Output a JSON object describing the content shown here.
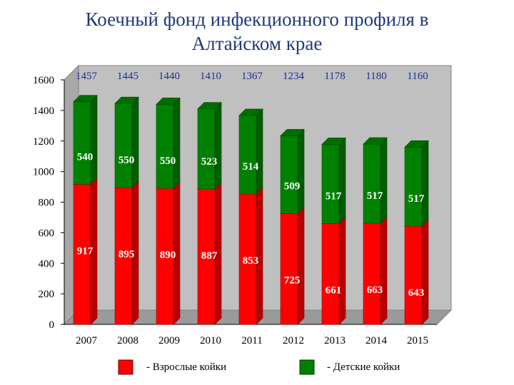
{
  "title_line1": "Коечный фонд инфекционного профиля в",
  "title_line2": "Алтайском крае",
  "legend": {
    "adult_label": "- Взрослые койки",
    "child_label": "- Детские койки"
  },
  "colors": {
    "adult": "#ff0000",
    "child": "#008000",
    "total_label": "#1f2f8f",
    "segment_label": "#ffffff",
    "plot_bg": "#c0c0c0"
  },
  "chart_data": {
    "type": "bar",
    "stacked": true,
    "categories": [
      "2007",
      "2008",
      "2009",
      "2010",
      "2011",
      "2012",
      "2013",
      "2014",
      "2015"
    ],
    "series": [
      {
        "name": "Взрослые койки",
        "values": [
          917,
          895,
          890,
          887,
          853,
          725,
          661,
          663,
          643
        ]
      },
      {
        "name": "Детские койки",
        "values": [
          540,
          550,
          550,
          523,
          514,
          509,
          517,
          517,
          517
        ]
      }
    ],
    "totals": [
      1457,
      1445,
      1440,
      1410,
      1367,
      1234,
      1178,
      1180,
      1160
    ],
    "title": "Коечный фонд инфекционного профиля в Алтайском крае",
    "xlabel": "",
    "ylabel": "",
    "ylim": [
      0,
      1600
    ],
    "yticks": [
      0,
      200,
      400,
      600,
      800,
      1000,
      1200,
      1400,
      1600
    ],
    "grid": false,
    "legend_position": "bottom"
  }
}
